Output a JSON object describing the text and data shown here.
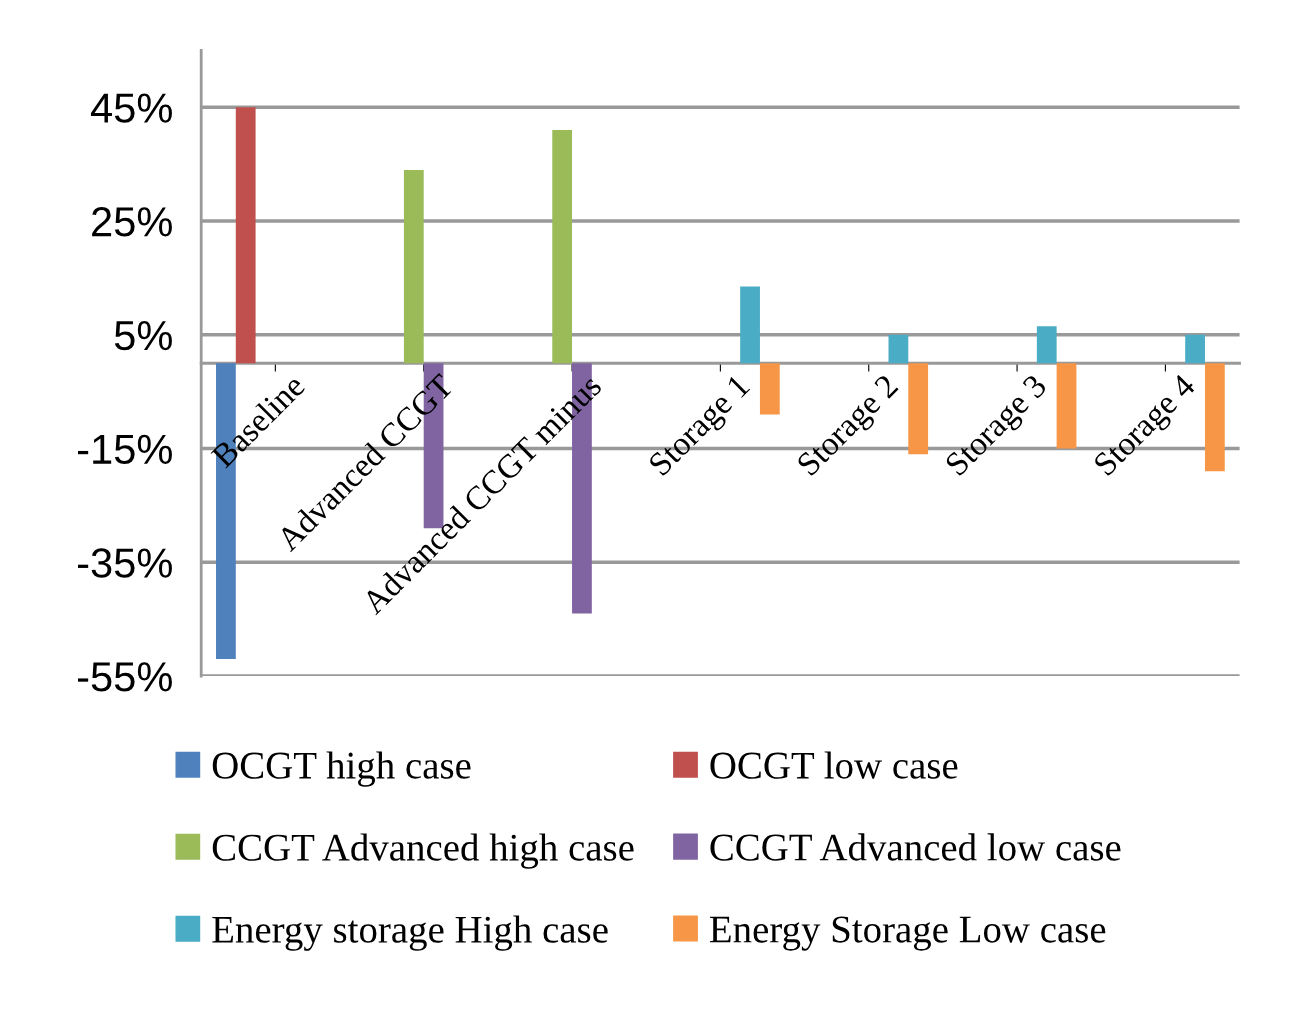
{
  "chart_data": {
    "type": "bar",
    "categories": [
      "Baseline",
      "Advanced CCGT",
      "Advanced CCGT minus",
      "Storage 1",
      "Storage 2",
      "Storage 3",
      "Storage 4"
    ],
    "series": [
      {
        "name": "OCGT high case",
        "color": "#4f81bd",
        "values": [
          -52,
          null,
          null,
          null,
          null,
          null,
          null
        ]
      },
      {
        "name": "OCGT low case",
        "color": "#c0504d",
        "values": [
          45,
          null,
          null,
          null,
          null,
          null,
          null
        ]
      },
      {
        "name": "CCGT Advanced high case",
        "color": "#9bbb59",
        "values": [
          null,
          34,
          41,
          null,
          null,
          null,
          null
        ]
      },
      {
        "name": "CCGT Advanced low case",
        "color": "#8064a2",
        "values": [
          null,
          -29,
          -44,
          null,
          null,
          null,
          null
        ]
      },
      {
        "name": "Energy storage High case",
        "color": "#4bacc6",
        "values": [
          null,
          null,
          null,
          13.5,
          5,
          6.5,
          5
        ]
      },
      {
        "name": "Energy Storage Low case",
        "color": "#f79646",
        "values": [
          null,
          null,
          null,
          -9,
          -16,
          -15,
          -19
        ]
      }
    ],
    "ylim": [
      -55,
      55
    ],
    "yticks": [
      {
        "value": 45,
        "label": "45%"
      },
      {
        "value": 25,
        "label": "25%"
      },
      {
        "value": 5,
        "label": "5%"
      },
      {
        "value": -15,
        "label": "-15%"
      },
      {
        "value": -35,
        "label": "-35%"
      },
      {
        "value": -55,
        "label": "-55%"
      }
    ],
    "grid": "y",
    "legend": "bottom"
  }
}
